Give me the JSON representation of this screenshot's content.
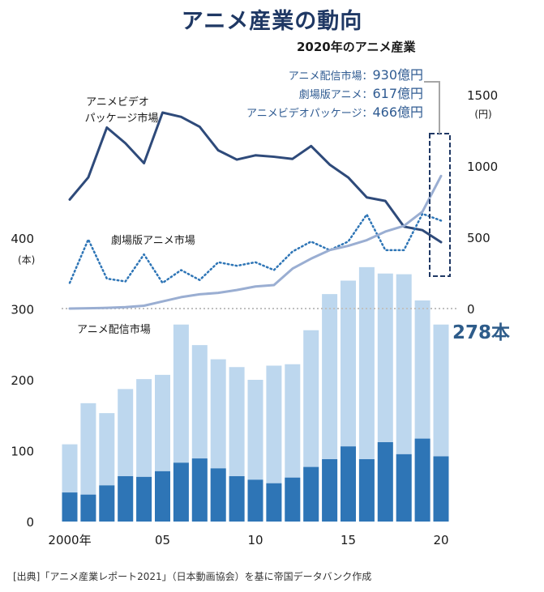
{
  "chart_data": {
    "type": "bar+line",
    "title": "アニメ産業の動向",
    "inset": {
      "title": "2020年のアニメ産業",
      "items": [
        {
          "label": "アニメ配信市場：",
          "value": "930億円"
        },
        {
          "label": "劇場版アニメ：",
          "value": "617億円"
        },
        {
          "label": "アニメビデオパッケージ：",
          "value": "466億円"
        }
      ]
    },
    "years": [
      2000,
      2001,
      2002,
      2003,
      2004,
      2005,
      2006,
      2007,
      2008,
      2009,
      2010,
      2011,
      2012,
      2013,
      2014,
      2015,
      2016,
      2017,
      2018,
      2019,
      2020
    ],
    "x_tick_labels": [
      {
        "year": 2000,
        "label": "2000年"
      },
      {
        "year": 2005,
        "label": "05"
      },
      {
        "year": 2010,
        "label": "10"
      },
      {
        "year": 2015,
        "label": "15"
      },
      {
        "year": 2020,
        "label": "20"
      }
    ],
    "left_axis": {
      "unit": "(本)",
      "ylim": [
        0,
        400
      ],
      "ticks": [
        "0",
        "100",
        "200",
        "300",
        "400"
      ]
    },
    "right_axis": {
      "unit": "(円)",
      "ylim": [
        0,
        1500
      ],
      "ticks": [
        "0",
        "500",
        "1000",
        "1500"
      ]
    },
    "bar_series": [
      {
        "name": "total",
        "color": "#bdd7ee",
        "values": [
          109,
          167,
          153,
          187,
          201,
          207,
          278,
          249,
          229,
          218,
          200,
          220,
          222,
          270,
          321,
          340,
          359,
          350,
          349,
          312,
          278
        ]
      },
      {
        "name": "base",
        "color": "#2e75b6",
        "values": [
          41,
          38,
          51,
          64,
          63,
          71,
          83,
          89,
          75,
          64,
          59,
          54,
          62,
          77,
          88,
          106,
          88,
          112,
          95,
          117,
          92
        ]
      }
    ],
    "line_series": [
      {
        "name": "アニメビデオパッケージ市場",
        "label": "アニメビデオパッケージ市場",
        "color": "#2e4a7a",
        "style": "solid",
        "values": [
          765,
          920,
          1270,
          1160,
          1020,
          1375,
          1345,
          1275,
          1110,
          1045,
          1075,
          1065,
          1050,
          1140,
          1010,
          920,
          780,
          755,
          575,
          550,
          466
        ]
      },
      {
        "name": "劇場版アニメ市場",
        "label": "劇場版アニメ市場",
        "color": "#2e75b6",
        "style": "dotted",
        "values": [
          180,
          485,
          210,
          190,
          380,
          180,
          270,
          200,
          325,
          300,
          325,
          270,
          400,
          470,
          410,
          470,
          660,
          410,
          410,
          665,
          617
        ]
      },
      {
        "name": "アニメ配信市場",
        "label": "アニメ配信市場",
        "color": "#9aaed2",
        "style": "solid",
        "values": [
          0,
          2,
          5,
          10,
          20,
          50,
          80,
          100,
          110,
          130,
          155,
          165,
          280,
          350,
          410,
          440,
          480,
          540,
          580,
          680,
          930
        ]
      }
    ],
    "annotation": "278本"
  },
  "source": "[出典]「アニメ産業レポート2021」（日本動画協会）を基に帝国データバンク作成"
}
